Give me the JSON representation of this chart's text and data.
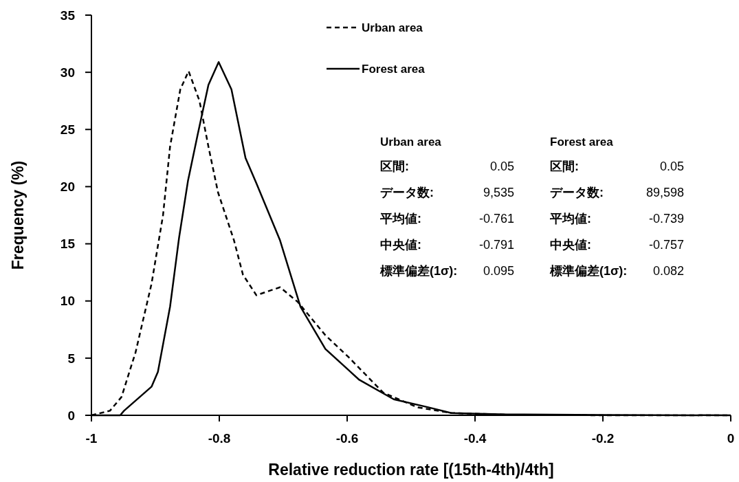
{
  "chart_data": {
    "type": "line",
    "xlabel": "Relative reduction rate [(15th-4th)/4th]",
    "ylabel": "Frequency (%)",
    "xlim": [
      -1,
      0
    ],
    "xticks": [
      -1,
      -0.8,
      -0.6,
      -0.4,
      -0.2,
      0
    ],
    "ylim": [
      0,
      35
    ],
    "yticks": [
      0,
      5,
      10,
      15,
      20,
      25,
      30,
      35
    ],
    "grid": false,
    "legend": "top",
    "marker": "none",
    "series": [
      {
        "name": "Urban area",
        "color": "#000000",
        "line_style": "dashed",
        "x": [
          -1,
          -0.971,
          -0.953,
          -0.931,
          -0.906,
          -0.888,
          -0.877,
          -0.861,
          -0.848,
          -0.831,
          -0.817,
          -0.802,
          -0.777,
          -0.763,
          -0.742,
          -0.705,
          -0.677,
          -0.634,
          -0.598,
          -0.544,
          -0.49,
          -0.437,
          -0.35,
          -0.2,
          0
        ],
        "values": [
          0,
          0.4,
          1.6,
          5.5,
          11.5,
          17.5,
          23.5,
          28.5,
          30.1,
          27.5,
          23.5,
          19.5,
          15.3,
          12.3,
          10.5,
          11.2,
          9.9,
          7,
          5.1,
          2,
          0.7,
          0.2,
          0.05,
          0,
          0
        ]
      },
      {
        "name": "Forest area",
        "color": "#000000",
        "line_style": "solid",
        "x": [
          -1,
          -0.955,
          -0.949,
          -0.906,
          -0.896,
          -0.877,
          -0.863,
          -0.849,
          -0.834,
          -0.817,
          -0.801,
          -0.781,
          -0.759,
          -0.742,
          -0.705,
          -0.673,
          -0.634,
          -0.581,
          -0.527,
          -0.473,
          -0.437,
          -0.35,
          -0.2,
          0
        ],
        "values": [
          0,
          0,
          0.4,
          2.5,
          3.8,
          9.5,
          15.5,
          20.5,
          24.5,
          28.9,
          30.9,
          28.5,
          22.5,
          20.3,
          15.3,
          9.5,
          5.8,
          3.1,
          1.4,
          0.7,
          0.2,
          0.08,
          0.03,
          0
        ]
      }
    ],
    "annotations": [
      "Urban area",
      "区間:",
      "0.05",
      "データ数:",
      "9,535",
      "平均値:",
      "-0.761",
      "中央値:",
      "-0.791",
      "標準偏差(1σ):",
      "0.095",
      "Forest area",
      "区間:",
      "0.05",
      "データ数:",
      "89,598",
      "平均値:",
      "-0.739",
      "中央値:",
      "-0.757",
      "標準偏差(1σ):",
      "0.082"
    ]
  }
}
